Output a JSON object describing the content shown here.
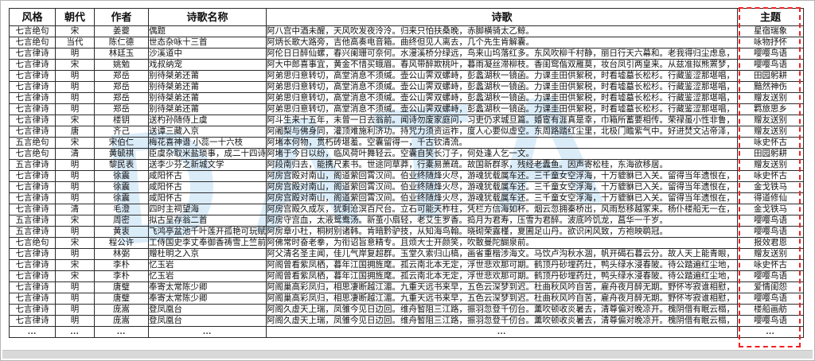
{
  "page": {
    "watermark": "DATA"
  },
  "table": {
    "headers": [
      "风格",
      "朝代",
      "作者",
      "诗歌名称",
      "诗歌",
      "主题"
    ],
    "rows": [
      [
        "七言绝句",
        "宋",
        "姜夔",
        "偶题",
        "阿八宫中酒未醒，天风吹发夜泠泠。归来只怕扶桑晚，赤脚横骑太乙鲸。",
        "星宿瑞象"
      ],
      [
        "七言绝句",
        "当代",
        "陈仁德",
        "世态杂咏十三首",
        "阿炳长歌大路旁，吉他高奏电音箱。曲终但见人离去，几个先生肯解囊。",
        "咏物抒怀"
      ],
      [
        "七言律诗",
        "明",
        "林廷玉",
        "沙溪道中",
        "阿伦日日醉仙螺，春兴阑珊可奈何。水漫溪桥分绿远，鸟来山坞落红多。东风吹柳千村静，丽日行天六幕和。老我得归尘虑息，",
        "嘤嘤鸟语"
      ],
      [
        "七言律诗",
        "宋",
        "姚勉",
        "戏叔纳宠",
        "阿大中郎喜事宜，黄金不惜买蛾眉。春风带醉欺桃叶，暮雨凝丝滞柳枝。香闺窎偕双雁莫，妆台凤引两皇来。从兹准拟熊罴梦，",
        "嘤嘤鸟语"
      ],
      [
        "七言律诗",
        "明",
        "郑岳",
        "别待桀弟还莆",
        "阿弟思归意转切，高堂消息不须缄。壶公山霁双螺峙，彭蠡湖秋一镜函。力课圭田供絮税，时看墟墓长松杉。行藏鉴涩那堪唱，",
        "田园躬耕"
      ],
      [
        "七言律诗",
        "明",
        "郑岳",
        "别待桀弟还莆",
        "阿弟思归意转切，高堂消息不须缄。壶公山霁双螺峙，彭蠡湖秋一镜函。力课圭田供絮税，时看墟墓长松杉。行藏鉴涩那堪唱，",
        "黯然神伤"
      ],
      [
        "七言律诗",
        "明",
        "郑岳",
        "别待桀弟还莆",
        "阿弟思归意转切，高堂消息不须缄。壶公山霁双螺峙，彭蠡湖秋一镜函。力课圭田供絮税，时看墟墓长松杉。行藏鉴涩那堪唱，",
        "赠友送别"
      ],
      [
        "七言律诗",
        "明",
        "郑岳",
        "别待桀弟还莆",
        "阿弟思归意转切，高堂消息不须缄。壶公山霁双螺峙，彭蠡湖秋一镜函。力课圭田供絮税，时看墟墓长松杉。行藏鉴涩那堪唱，",
        "羁旅思乡"
      ],
      [
        "七言律诗",
        "宋",
        "楼钥",
        "送杓孙随侍上虞",
        "阿斗生来十五年，未曾一日去翁前。闻诗勿废家庭问，习吏仍求城旦篇。婚宦有涯真是幸，巾箱所蓄要相传。荣禄虽小性非鲁，",
        "赠友送别"
      ],
      [
        "七言律诗",
        "唐",
        "齐己",
        "送谭三藏入京",
        "阿阇梨与佛身同，灌顶难施利济功。持咒力须资运祚，度人心要似虚空。东周路踏红尘里，北极门瞻紫气中。好进焚文沾帝泽，",
        "赠友送别"
      ],
      [
        "五言绝句",
        "宋",
        "宋伯仁",
        "梅花喜神谱 小蕊一十六枝",
        "阿堵本何物，贯朽砖堪羞。空囊留得一，千古钦清流。",
        "咏史怀古"
      ],
      [
        "七言绝句",
        "清",
        "黄毓祺",
        "臣虞杂取米盐琐事，成二十四诗",
        "阿堵于今日以纷，临风荷叶舞轻云。空囊自笑长汀子，何处逢人乞一文。",
        "田园躬耕"
      ],
      [
        "五言律诗",
        "明",
        "黎民表",
        "送李少芬之新城文学",
        "阿段南归去，能携尺素书。世途同草莽，行橐易萧疏。故国新群豕，残经老蠹鱼。因声寄松桂，东海欲移居。",
        "赠友送别"
      ],
      [
        "七言律诗",
        "明",
        "徐震",
        "咸阳怀古",
        "阿房宫殿对南山，阁道萦回霄汉间。伯业终随烽火尽，游魂犹载属车还。三千童女空浮海，十万貔貅已入关。留得当年遗恨在，",
        "咏史怀古"
      ],
      [
        "七言律诗",
        "明",
        "徐震",
        "咸阳怀古",
        "阿房宫殿对南山，阁道萦回霄汉间。伯业终随烽火尽，游魂犹载属车还。三千童女空浮海，十万貔貅已入关。留得当年遗恨在，",
        "金戈铁马"
      ],
      [
        "七言律诗",
        "明",
        "徐震",
        "咸阳怀古",
        "阿房宫殿对南山，阁道萦回霄汉间。伯业终随烽火尽，游魂犹载属车还。三千童女空浮海，十万貔貅已入关。留得当年遗恨在，",
        "得道修仙"
      ],
      [
        "七言律诗",
        "清",
        "毛澄",
        "四时主祠望海",
        "阿房宫殿久成灰，犹剩沧溟百尺台。立石可能天柞柱，凭栏方信海如杯。烟云忽拥秦桥出，风雨愁移越冢来。杨仆楼船无一在，",
        "金戈铁马"
      ],
      [
        "五言律诗",
        "宋",
        "周密",
        "拟古呈存翁二首",
        "阿房守宫血，太液鸳鸯汤。新茧小扇轻，老艾生罗香。捣月为君寿，压雪为君醉。波底吟饥龙，菖华一千岁。",
        "嘤嘤鸟语"
      ],
      [
        "五言律诗",
        "明",
        "黄衷",
        "飞鸿亭盆池千叶莲开孤艳可玩赋",
        "阿房章小杜，桐树别诸韩。肯暗黔驴技，从知海鸟翰。晓砌荣露槿，夏圃足山丹。欲识闲风致，方袍映鹖冠。",
        "嘤嘤鸟语"
      ],
      [
        "七言绝句",
        "宋",
        "程公许",
        "工侍国史李丈奉御香祷雪上竺前",
        "阿佛常时奋老拳，为衔诏旨意精专。且烦大士开颜笑，吹散曼陀醐泉前。",
        "报效君恩"
      ],
      [
        "七言律诗",
        "明",
        "林弼",
        "赠杜明之入京",
        "阿父清名圣主闻，佳儿气岸复超群。玉堂久索归山槁，画省重楷涉海文。马饮卢沟秋水涸，帆开碣石暮云分。故人天上能青眼，",
        "赠友送别"
      ],
      [
        "七言律诗",
        "宋",
        "李朴",
        "忆玉岩",
        "阿阁曾看紫凤栖，暮年江国拥旌麾。孤云南北本无定，浮世悲欢那可期。鹤顶丹砂埋药灶，鸭头绿水浸春陂。待公踏遍红尘地，",
        "咏史怀古"
      ],
      [
        "七言律诗",
        "宋",
        "李朴",
        "忆玉岩",
        "阿阁曾看紫凤栖，暮年江国拥旌麾。孤云南北本无定，浮世悲欢那可期。鹤顶丹砂埋药灶，鸭头绿水浸春陂。待公踏遍红尘地，",
        "嘤嘤鸟语"
      ],
      [
        "七言律诗",
        "明",
        "唐璧",
        "奉寄太常陈少卿",
        "阿阁巢高彩凤归，相思凄断越江湄。九重天远书来早，五色云深梦到迟。杜曲秋风吟自苦，雇舟夜月醉无期。野怀岑寂谁相慰，",
        "爱情闺怨"
      ],
      [
        "七言律诗",
        "明",
        "唐璧",
        "奉寄太常陈少卿",
        "阿阁巢高彩凤归，相思凄断越江湄。九重天远书来早，五色云深梦到迟。杜曲秋风吟自苦，雇舟夜月醉无期。野怀岑寂谁相慰，",
        "嘤嘤鸟语"
      ],
      [
        "七言律诗",
        "明",
        "庞嵩",
        "登凤凰台",
        "阿阁久虚天上瑞，凤雏今见日边回。维舟暂阻三江路，振羽忽登千仞台。薰吹顿收炎暑去，清尊偏对晚凉开。槐阴借有眠云榻，",
        "楼船画舫"
      ],
      [
        "七言律诗",
        "明",
        "庞嵩",
        "登凤凰台",
        "阿阁久虚天上瑞，凤雏今见日边回。维舟暂阻三江路，振羽忽登千仞台。薰吹顿收炎暑去，清尊偏对晚凉开。槐阴借有眠云榻，",
        "嘤嘤鸟语"
      ],
      [
        "...",
        "...",
        "...",
        "...",
        "...",
        "..."
      ]
    ]
  },
  "highlight": {
    "target_column": "主题",
    "color": "#f22020"
  }
}
